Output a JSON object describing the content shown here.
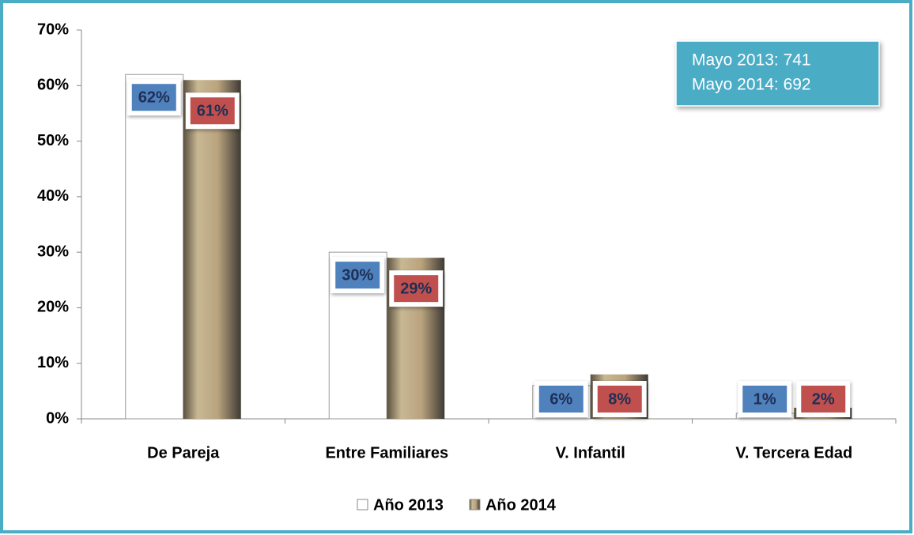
{
  "chart_data": {
    "type": "bar",
    "categories": [
      "De Pareja",
      "Entre Familiares",
      "V. Infantil",
      "V. Tercera Edad"
    ],
    "series": [
      {
        "name": "Año 2013",
        "color": "#ffffff",
        "label_color": "#4f81bd",
        "values": [
          62,
          30,
          6,
          1
        ],
        "value_labels": [
          "62%",
          "30%",
          "6%",
          "1%"
        ]
      },
      {
        "name": "Año 2014",
        "color": "#b8a682",
        "label_color": "#c0504d",
        "values": [
          61,
          29,
          8,
          2
        ],
        "value_labels": [
          "61%",
          "29%",
          "8%",
          "2%"
        ]
      }
    ],
    "ylim": [
      0,
      70
    ],
    "yticks": [
      {
        "value": 0,
        "label": "0%"
      },
      {
        "value": 10,
        "label": "10%"
      },
      {
        "value": 20,
        "label": "20%"
      },
      {
        "value": 30,
        "label": "30%"
      },
      {
        "value": 40,
        "label": "40%"
      },
      {
        "value": 50,
        "label": "50%"
      },
      {
        "value": 60,
        "label": "60%"
      },
      {
        "value": 70,
        "label": "70%"
      }
    ],
    "grid": false,
    "legend": "bottom",
    "annotations": [
      "Mayo 2013: 741",
      "Mayo 2014: 692"
    ]
  }
}
